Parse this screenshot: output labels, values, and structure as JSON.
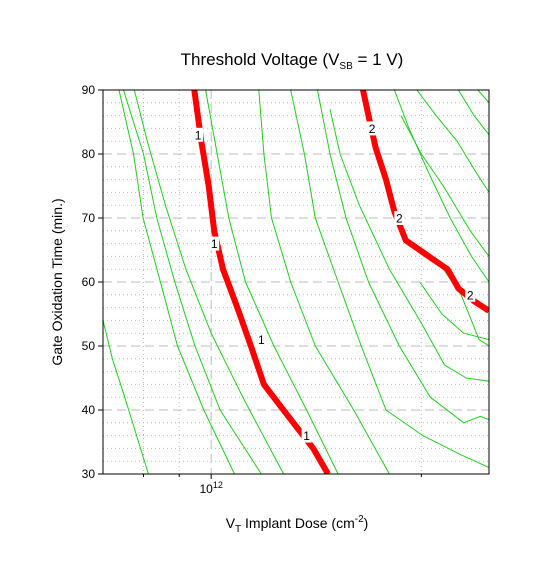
{
  "chart_data": {
    "type": "line",
    "subtype": "contour",
    "title": {
      "main": "Threshold Voltage (V",
      "sub": "SB",
      "tail": " = 1 V)"
    },
    "xlabel": {
      "pre": "V",
      "sub": "T",
      "mid": " Implant Dose (cm",
      "sup": "-2",
      "post": ")"
    },
    "ylabel": "Gate Oxidation Time (min.)",
    "x_scale": "log",
    "xlim": [
      700000000000.0,
      2500000000000.0
    ],
    "ylim": [
      30,
      90
    ],
    "x_tick_label": {
      "value": 1000000000000.0,
      "base": "10",
      "exp": "12"
    },
    "y_ticks": [
      30,
      40,
      50,
      60,
      70,
      80,
      90
    ],
    "grid": true,
    "colors": {
      "minor": "#22cc22",
      "major": "#ff0000",
      "grid": "#bbbbbb"
    },
    "minor_contours": [
      {
        "points": [
          [
            738000000000.0,
            90
          ],
          [
            774000000000.0,
            80
          ],
          [
            799000000000.0,
            70
          ],
          [
            846000000000.0,
            60
          ],
          [
            895000000000.0,
            50
          ],
          [
            976000000000.0,
            40
          ],
          [
            1080000000000.0,
            30
          ]
        ]
      },
      {
        "points": [
          [
            749000000000.0,
            90
          ],
          [
            800000000000.0,
            80
          ],
          [
            836000000000.0,
            70
          ],
          [
            887000000000.0,
            60
          ],
          [
            948000000000.0,
            50
          ],
          [
            1030000000000.0,
            40
          ],
          [
            1180000000000.0,
            30
          ]
        ]
      },
      {
        "points": [
          [
            776000000000.0,
            90
          ],
          [
            810000000000.0,
            82
          ],
          [
            860000000000.0,
            72
          ],
          [
            920000000000.0,
            62
          ],
          [
            1000000000000.0,
            52
          ],
          [
            1110000000000.0,
            42
          ],
          [
            1270000000000.0,
            30
          ]
        ]
      },
      {
        "points": [
          [
            982000000000.0,
            90
          ],
          [
            1020000000000.0,
            80
          ],
          [
            1060000000000.0,
            70
          ],
          [
            1120000000000.0,
            60
          ],
          [
            1230000000000.0,
            50
          ],
          [
            1370000000000.0,
            40
          ],
          [
            1520000000000.0,
            30
          ]
        ]
      },
      {
        "points": [
          [
            1170000000000.0,
            90
          ],
          [
            1190000000000.0,
            80
          ],
          [
            1220000000000.0,
            70
          ],
          [
            1300000000000.0,
            60
          ],
          [
            1410000000000.0,
            50
          ],
          [
            1600000000000.0,
            40
          ],
          [
            1800000000000.0,
            30
          ]
        ]
      },
      {
        "points": [
          [
            1300000000000.0,
            90
          ],
          [
            1360000000000.0,
            80
          ],
          [
            1410000000000.0,
            70
          ],
          [
            1520000000000.0,
            60
          ],
          [
            1640000000000.0,
            50
          ],
          [
            1780000000000.0,
            40
          ],
          [
            2010000000000.0,
            36
          ],
          [
            2280000000000.0,
            33
          ],
          [
            2500000000000.0,
            31
          ]
        ]
      },
      {
        "points": [
          [
            1420000000000.0,
            90
          ],
          [
            1480000000000.0,
            80
          ],
          [
            1560000000000.0,
            70
          ],
          [
            1680000000000.0,
            60
          ],
          [
            1860000000000.0,
            50
          ],
          [
            2060000000000.0,
            42
          ],
          [
            2300000000000.0,
            38
          ],
          [
            2430000000000.0,
            39
          ],
          [
            2500000000000.0,
            38.5
          ]
        ]
      },
      {
        "points": [
          [
            1480000000000.0,
            87
          ],
          [
            1530000000000.0,
            80
          ],
          [
            1630000000000.0,
            72
          ],
          [
            1800000000000.0,
            62
          ],
          [
            1990000000000.0,
            54
          ],
          [
            2160000000000.0,
            47
          ],
          [
            2320000000000.0,
            45
          ],
          [
            2500000000000.0,
            44.5
          ]
        ]
      },
      {
        "points": [
          [
            1830000000000.0,
            90
          ],
          [
            1920000000000.0,
            84
          ],
          [
            2050000000000.0,
            77
          ],
          [
            2200000000000.0,
            70
          ],
          [
            2360000000000.0,
            64
          ],
          [
            2500000000000.0,
            60
          ]
        ]
      },
      {
        "points": [
          [
            1870000000000.0,
            86
          ],
          [
            2000000000000.0,
            80
          ],
          [
            2150000000000.0,
            75
          ],
          [
            2350000000000.0,
            68
          ],
          [
            2500000000000.0,
            64
          ]
        ]
      },
      {
        "points": [
          [
            1970000000000.0,
            90
          ],
          [
            2100000000000.0,
            86
          ],
          [
            2250000000000.0,
            82
          ],
          [
            2400000000000.0,
            77
          ],
          [
            2500000000000.0,
            74
          ]
        ]
      },
      {
        "points": [
          [
            2260000000000.0,
            90
          ],
          [
            2380000000000.0,
            86
          ],
          [
            2500000000000.0,
            83
          ]
        ]
      },
      {
        "points": [
          [
            2410000000000.0,
            90
          ],
          [
            2500000000000.0,
            88
          ]
        ]
      },
      {
        "points": [
          [
            2120000000000.0,
            63
          ],
          [
            2280000000000.0,
            58
          ],
          [
            2420000000000.0,
            51
          ],
          [
            2500000000000.0,
            50
          ]
        ]
      },
      {
        "points": [
          [
            1990000000000.0,
            60
          ],
          [
            2140000000000.0,
            55
          ],
          [
            2300000000000.0,
            52
          ],
          [
            2500000000000.0,
            51
          ]
        ]
      },
      {
        "points": [
          [
            700000000000.0,
            54
          ],
          [
            722000000000.0,
            48
          ],
          [
            752000000000.0,
            42
          ],
          [
            782000000000.0,
            36
          ],
          [
            813000000000.0,
            30
          ]
        ]
      }
    ],
    "major_contours": [
      {
        "label": "1",
        "points": [
          [
            946000000000.0,
            90
          ],
          [
            968000000000.0,
            82
          ],
          [
            992000000000.0,
            75
          ],
          [
            1010000000000.0,
            68
          ],
          [
            1040000000000.0,
            62
          ],
          [
            1090000000000.0,
            56
          ],
          [
            1140000000000.0,
            50
          ],
          [
            1190000000000.0,
            44
          ],
          [
            1290000000000.0,
            39
          ],
          [
            1400000000000.0,
            34
          ],
          [
            1470000000000.0,
            30
          ]
        ]
      },
      {
        "label": "2",
        "points": [
          [
            1650000000000.0,
            90
          ],
          [
            1680000000000.0,
            86
          ],
          [
            1720000000000.0,
            81
          ],
          [
            1780000000000.0,
            76
          ],
          [
            1830000000000.0,
            71
          ],
          [
            1900000000000.0,
            66.5
          ],
          [
            2050000000000.0,
            64
          ],
          [
            2180000000000.0,
            62
          ],
          [
            2260000000000.0,
            59
          ],
          [
            2380000000000.0,
            57
          ],
          [
            2500000000000.0,
            55.5
          ]
        ]
      }
    ],
    "contour_labels": [
      {
        "text": "1",
        "x": 958000000000.0,
        "y": 83
      },
      {
        "text": "1",
        "x": 1010000000000.0,
        "y": 66
      },
      {
        "text": "1",
        "x": 1180000000000.0,
        "y": 51
      },
      {
        "text": "1",
        "x": 1370000000000.0,
        "y": 36
      },
      {
        "text": "2",
        "x": 1700000000000.0,
        "y": 84
      },
      {
        "text": "2",
        "x": 1860000000000.0,
        "y": 70
      },
      {
        "text": "2",
        "x": 2350000000000.0,
        "y": 58
      }
    ]
  }
}
